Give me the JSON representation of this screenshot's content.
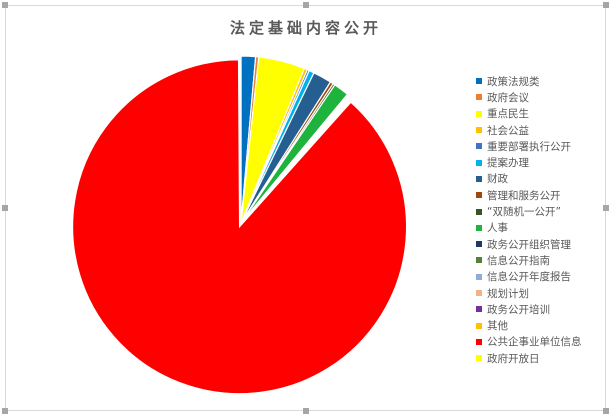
{
  "chart_data": {
    "type": "pie",
    "title": "法定基础内容公开",
    "legend_position": "right",
    "exploded": [
      "公共企事业单位信息"
    ],
    "categories": [
      "政策法规类",
      "政府会议",
      "重点民生",
      "社会公益",
      "重要部署执行公开",
      "提案办理",
      "财政",
      "管理和服务公开",
      "“双随机一公开”",
      "人事",
      "政务公开组织管理",
      "信息公开指南",
      "信息公开年度报告",
      "规划计划",
      "政务公开培训",
      "其他",
      "公共企事业单位信息",
      "政府开放日"
    ],
    "values": [
      1.4,
      0.3,
      4.5,
      0.3,
      0.2,
      0.5,
      1.8,
      0.3,
      0.2,
      1.5,
      0.1,
      0.1,
      0.1,
      0.1,
      0.1,
      0.1,
      88.3,
      0.1
    ],
    "colors": [
      "#0070c0",
      "#ed7d31",
      "#ffff00",
      "#ffc000",
      "#4472c4",
      "#00b0f0",
      "#255e91",
      "#9e480e",
      "#375623",
      "#1db33c",
      "#203864",
      "#548235",
      "#8faadc",
      "#f4b183",
      "#7030a0",
      "#ffc000",
      "#ff0000",
      "#ffff00"
    ]
  }
}
